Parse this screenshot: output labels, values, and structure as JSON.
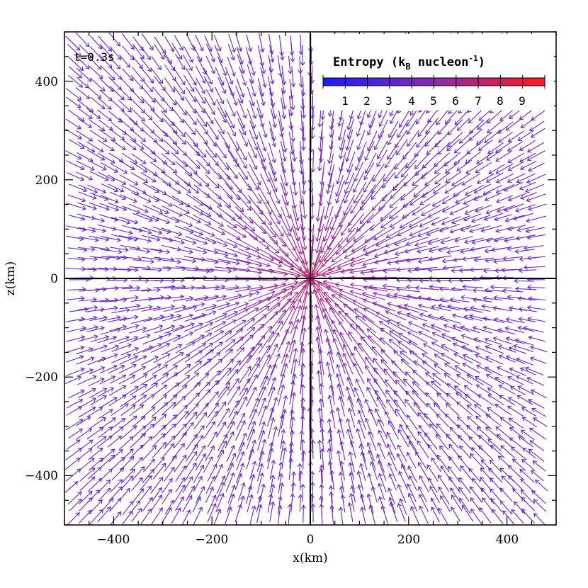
{
  "chart_data": {
    "type": "quiver",
    "time_label": "t=0.3s",
    "xlabel": "x(km)",
    "ylabel": "z(km)",
    "xlim": [
      -500,
      500
    ],
    "ylim": [
      -500,
      500
    ],
    "xticks": [
      -400,
      -200,
      0,
      200,
      400
    ],
    "yticks": [
      -400,
      -200,
      0,
      200,
      400
    ],
    "x_tick_labels": [
      "−400",
      "−200",
      "0",
      "200",
      "400"
    ],
    "y_tick_labels": [
      "−400",
      "−200",
      "0",
      "200",
      "400"
    ],
    "zero_lines": true,
    "field": {
      "description": "infall velocity arrows pointing toward the origin, colored by entropy",
      "direction": "radially inward",
      "entropy_center": 9.5,
      "entropy_far": 3.5
    },
    "colorbar": {
      "title": "Entropy (k",
      "title_sub": "B",
      "title_rest": " nucleon",
      "title_sup": "-1",
      "title_close": ")",
      "placement": "top-right",
      "range": [
        0,
        10
      ],
      "ticks": [
        "1",
        "2",
        "3",
        "4",
        "5",
        "6",
        "7",
        "8",
        "9"
      ],
      "colors": [
        "#1a1aff",
        "#ff1a1a"
      ]
    }
  }
}
